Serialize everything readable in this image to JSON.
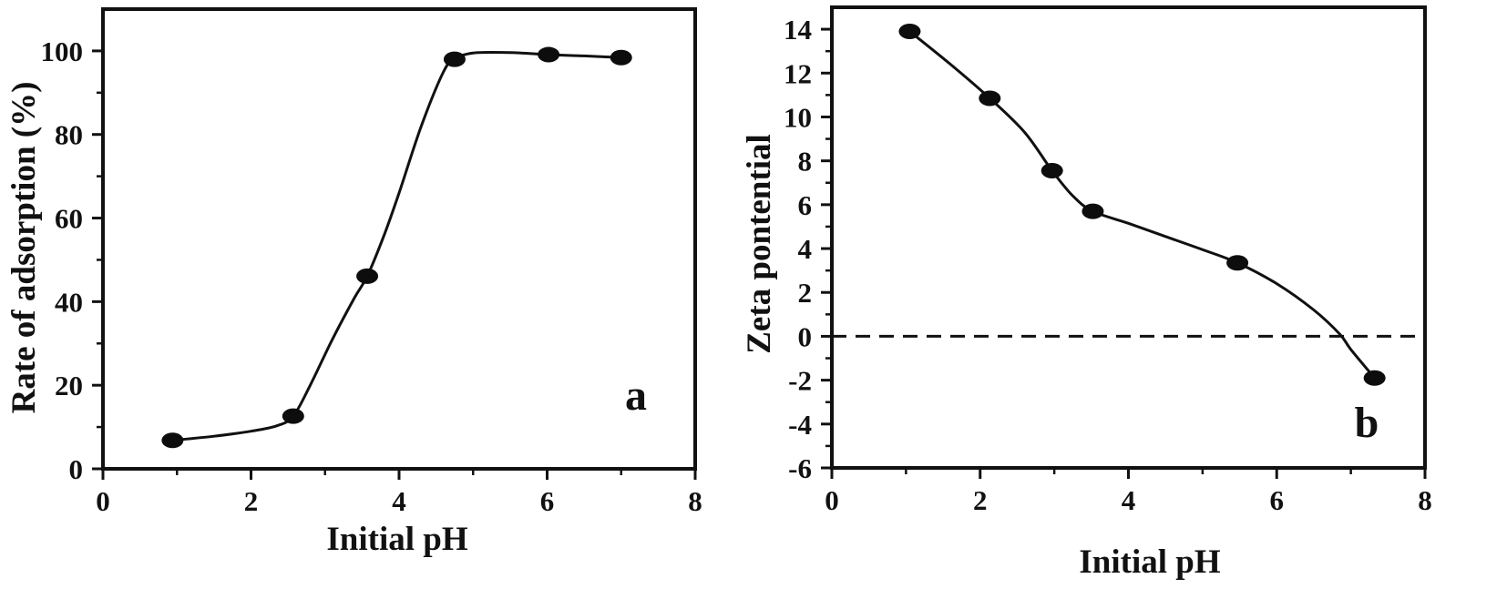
{
  "chart_data": [
    {
      "type": "line",
      "panel_label": "a",
      "xlabel": "Initial pH",
      "ylabel": "Rate of adsorption (%)",
      "xlim": [
        0,
        8
      ],
      "ylim": [
        0,
        110
      ],
      "xticks": [
        "0",
        "2",
        "4",
        "6",
        "8"
      ],
      "yticks": [
        "0",
        "20",
        "40",
        "60",
        "80",
        "100"
      ],
      "grid": false,
      "series": [
        {
          "x": [
            0.94,
            2.57,
            3.57,
            4.75,
            6.02,
            7.0
          ],
          "y": [
            6.8,
            12.6,
            46.1,
            98.0,
            99.1,
            98.4
          ]
        }
      ],
      "curve": {
        "x": [
          0.94,
          1.5,
          2.0,
          2.35,
          2.57,
          2.8,
          3.1,
          3.4,
          3.57,
          3.8,
          4.0,
          4.3,
          4.6,
          4.75,
          5.0,
          5.5,
          6.02,
          6.5,
          7.0
        ],
        "y": [
          6.8,
          7.8,
          9.0,
          10.3,
          12.6,
          20.0,
          31.0,
          41.0,
          46.1,
          56.0,
          66.0,
          82.0,
          95.0,
          98.0,
          99.5,
          99.6,
          99.1,
          98.8,
          98.4
        ]
      }
    },
    {
      "type": "line",
      "panel_label": "b",
      "xlabel": "Initial pH",
      "ylabel": "Zeta pontential",
      "xlim": [
        0,
        8
      ],
      "ylim": [
        -6,
        15
      ],
      "xticks": [
        "0",
        "2",
        "4",
        "6",
        "8"
      ],
      "yticks": [
        "-6",
        "-4",
        "-2",
        "0",
        "2",
        "4",
        "6",
        "8",
        "10",
        "12",
        "14"
      ],
      "grid": false,
      "reference_line": {
        "y": 0,
        "style": "dashed"
      },
      "series": [
        {
          "x": [
            1.05,
            2.13,
            2.97,
            3.52,
            5.47,
            7.32
          ],
          "y": [
            13.9,
            10.85,
            7.55,
            5.7,
            3.35,
            -1.9
          ]
        }
      ],
      "curve": {
        "x": [
          1.05,
          1.6,
          2.13,
          2.6,
          2.97,
          3.25,
          3.52,
          4.0,
          4.5,
          5.0,
          5.47,
          6.0,
          6.5,
          6.85,
          7.0,
          7.32
        ],
        "y": [
          13.9,
          12.4,
          10.85,
          9.3,
          7.55,
          6.4,
          5.7,
          5.15,
          4.55,
          3.95,
          3.35,
          2.4,
          1.2,
          0.1,
          -0.6,
          -1.9
        ]
      }
    }
  ]
}
